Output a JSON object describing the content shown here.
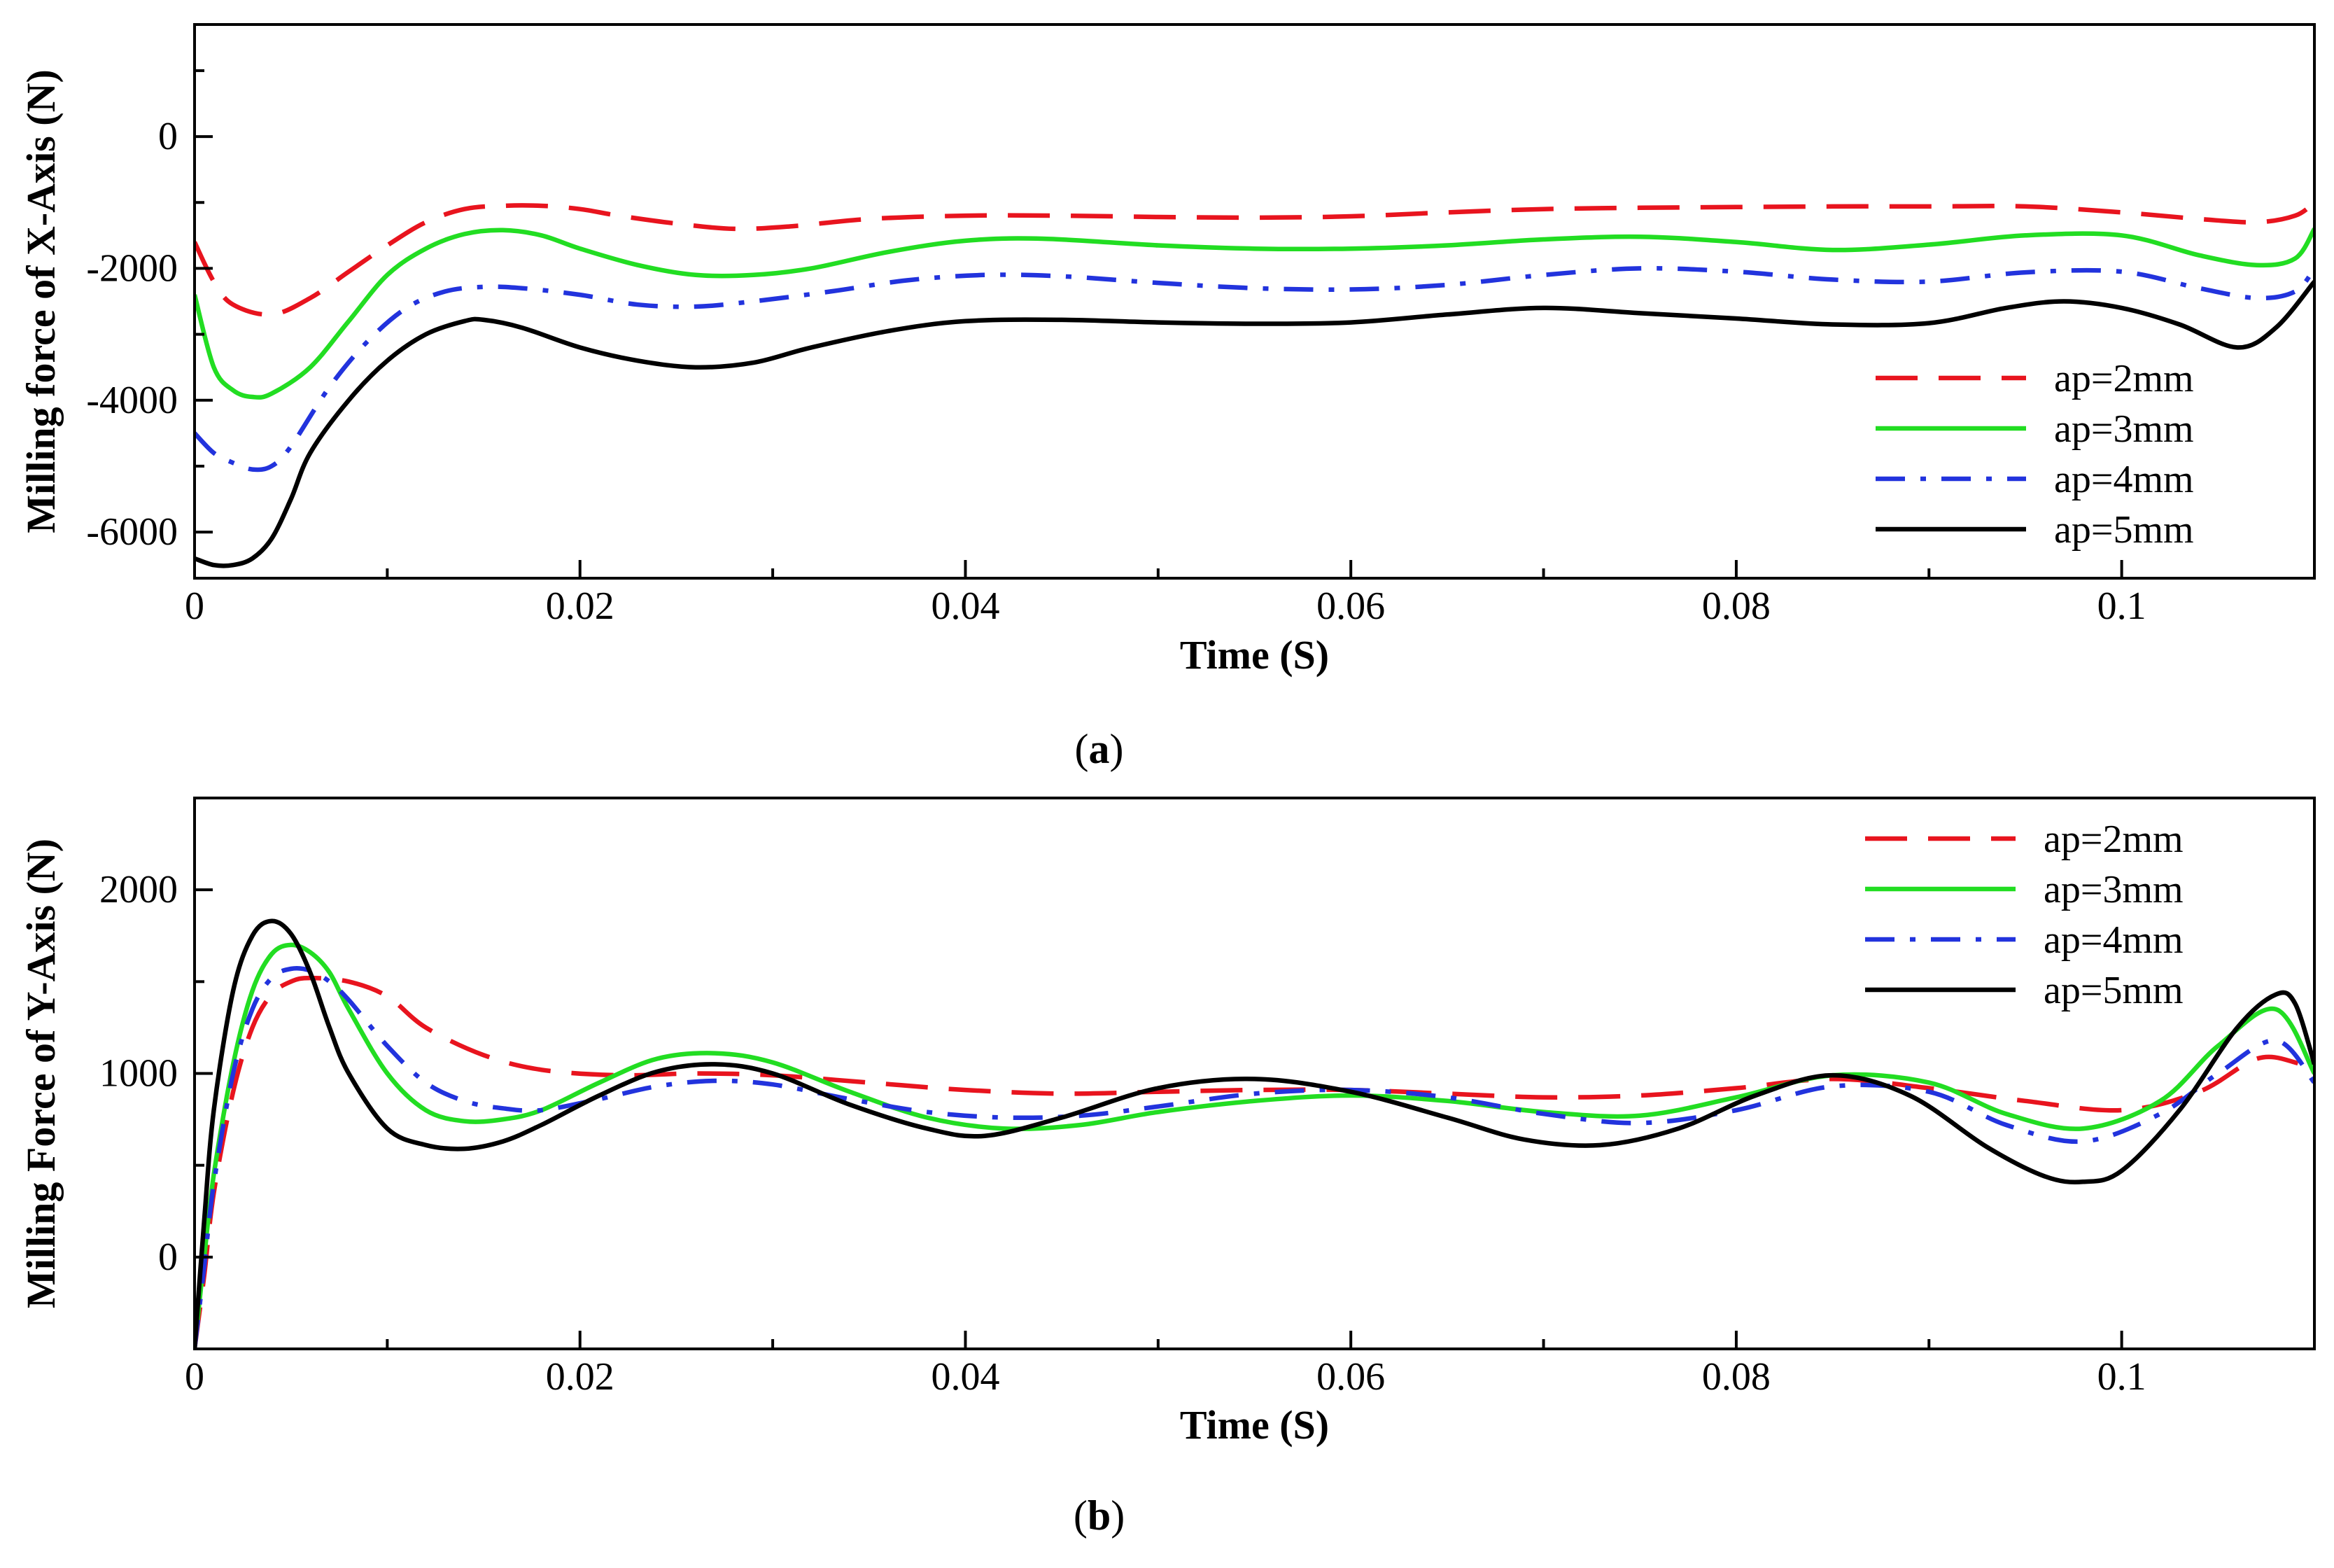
{
  "chart_data": [
    {
      "type": "line",
      "panel": "a",
      "caption_open": "(",
      "caption_letter": "a",
      "caption_close": ")",
      "xlabel": "Time (S)",
      "ylabel": "Milling force of X-Axis (N)",
      "xlim": [
        0,
        0.11
      ],
      "ylim": [
        -6700,
        1700
      ],
      "xticks": [
        0,
        0.02,
        0.04,
        0.06,
        0.08,
        0.1
      ],
      "xtick_labels": [
        "0",
        "0.02",
        "0.04",
        "0.06",
        "0.08",
        "0.1"
      ],
      "yticks": [
        -6000,
        -4000,
        -2000,
        0
      ],
      "ytick_labels": [
        "-6000",
        "-4000",
        "-2000",
        "0"
      ],
      "legend_position": "bottom-right",
      "series": [
        {
          "name": "ap=2mm",
          "color": "#e8141e",
          "dash": "dashed",
          "x": [
            0,
            0.001,
            0.002,
            0.004,
            0.006,
            0.008,
            0.01,
            0.012,
            0.014,
            0.016,
            0.018,
            0.02,
            0.022,
            0.025,
            0.028,
            0.031,
            0.035,
            0.04,
            0.045,
            0.05,
            0.055,
            0.06,
            0.065,
            0.07,
            0.075,
            0.08,
            0.085,
            0.09,
            0.095,
            0.1,
            0.104,
            0.107,
            0.109,
            0.11
          ],
          "y": [
            -1600,
            -2200,
            -2550,
            -2700,
            -2450,
            -2050,
            -1650,
            -1300,
            -1100,
            -1050,
            -1050,
            -1100,
            -1200,
            -1320,
            -1400,
            -1360,
            -1250,
            -1200,
            -1200,
            -1220,
            -1230,
            -1210,
            -1150,
            -1100,
            -1080,
            -1070,
            -1060,
            -1060,
            -1060,
            -1150,
            -1250,
            -1300,
            -1200,
            -1000
          ]
        },
        {
          "name": "ap=3mm",
          "color": "#22dd22",
          "dash": "solid",
          "x": [
            0,
            0.001,
            0.002,
            0.003,
            0.004,
            0.006,
            0.008,
            0.01,
            0.012,
            0.014,
            0.016,
            0.018,
            0.02,
            0.023,
            0.026,
            0.029,
            0.032,
            0.036,
            0.04,
            0.044,
            0.05,
            0.055,
            0.06,
            0.065,
            0.07,
            0.075,
            0.08,
            0.085,
            0.09,
            0.095,
            0.1,
            0.104,
            0.107,
            0.109,
            0.11
          ],
          "y": [
            -2400,
            -3500,
            -3850,
            -3950,
            -3900,
            -3500,
            -2800,
            -2100,
            -1700,
            -1480,
            -1420,
            -1500,
            -1700,
            -1950,
            -2100,
            -2100,
            -2000,
            -1750,
            -1580,
            -1550,
            -1650,
            -1700,
            -1700,
            -1650,
            -1560,
            -1520,
            -1600,
            -1720,
            -1640,
            -1500,
            -1500,
            -1800,
            -1950,
            -1850,
            -1400
          ]
        },
        {
          "name": "ap=4mm",
          "color": "#2233dd",
          "dash": "dashdot",
          "x": [
            0,
            0.001,
            0.002,
            0.003,
            0.004,
            0.005,
            0.007,
            0.009,
            0.011,
            0.013,
            0.015,
            0.017,
            0.02,
            0.023,
            0.026,
            0.029,
            0.033,
            0.037,
            0.041,
            0.045,
            0.05,
            0.055,
            0.06,
            0.065,
            0.07,
            0.075,
            0.08,
            0.085,
            0.09,
            0.095,
            0.1,
            0.104,
            0.107,
            0.109,
            0.11
          ],
          "y": [
            -4500,
            -4800,
            -4950,
            -5050,
            -5000,
            -4700,
            -3800,
            -3100,
            -2600,
            -2350,
            -2280,
            -2300,
            -2400,
            -2550,
            -2580,
            -2500,
            -2350,
            -2180,
            -2100,
            -2120,
            -2220,
            -2300,
            -2320,
            -2250,
            -2100,
            -2000,
            -2050,
            -2170,
            -2200,
            -2060,
            -2050,
            -2300,
            -2450,
            -2350,
            -2000
          ]
        },
        {
          "name": "ap=5mm",
          "color": "#000000",
          "dash": "solid",
          "x": [
            0,
            0.001,
            0.002,
            0.003,
            0.004,
            0.005,
            0.006,
            0.008,
            0.01,
            0.012,
            0.014,
            0.015,
            0.017,
            0.02,
            0.023,
            0.026,
            0.029,
            0.032,
            0.036,
            0.04,
            0.045,
            0.05,
            0.055,
            0.06,
            0.065,
            0.07,
            0.075,
            0.08,
            0.085,
            0.09,
            0.094,
            0.097,
            0.1,
            0.103,
            0.106,
            0.108,
            0.11
          ],
          "y": [
            -6400,
            -6500,
            -6500,
            -6400,
            -6100,
            -5500,
            -4800,
            -4000,
            -3400,
            -3000,
            -2800,
            -2780,
            -2900,
            -3200,
            -3400,
            -3500,
            -3430,
            -3200,
            -2950,
            -2800,
            -2780,
            -2820,
            -2840,
            -2820,
            -2700,
            -2600,
            -2680,
            -2760,
            -2850,
            -2830,
            -2600,
            -2500,
            -2600,
            -2850,
            -3200,
            -2900,
            -2200
          ]
        }
      ]
    },
    {
      "type": "line",
      "panel": "b",
      "caption_open": "(",
      "caption_letter": "b",
      "caption_close": ")",
      "xlabel": "Time (S)",
      "ylabel": "Milling Force of Y-Axis (N)",
      "xlim": [
        0,
        0.11
      ],
      "ylim": [
        -500,
        2500
      ],
      "xticks": [
        0,
        0.02,
        0.04,
        0.06,
        0.08,
        0.1
      ],
      "xtick_labels": [
        "0",
        "0.02",
        "0.04",
        "0.06",
        "0.08",
        "0.1"
      ],
      "yticks": [
        0,
        1000,
        2000
      ],
      "ytick_labels": [
        "0",
        "1000",
        "2000"
      ],
      "legend_position": "top-right",
      "series": [
        {
          "name": "ap=2mm",
          "color": "#e8141e",
          "dash": "dashed",
          "x": [
            0,
            0.0005,
            0.001,
            0.002,
            0.003,
            0.004,
            0.005,
            0.006,
            0.008,
            0.01,
            0.012,
            0.015,
            0.018,
            0.022,
            0.026,
            0.03,
            0.035,
            0.04,
            0.045,
            0.05,
            0.055,
            0.06,
            0.065,
            0.07,
            0.075,
            0.08,
            0.085,
            0.09,
            0.095,
            0.1,
            0.104,
            0.107,
            0.109,
            0.11
          ],
          "y": [
            -500,
            -100,
            350,
            900,
            1250,
            1430,
            1500,
            1520,
            1500,
            1420,
            1250,
            1100,
            1020,
            990,
            1000,
            990,
            950,
            910,
            890,
            900,
            910,
            910,
            890,
            870,
            880,
            920,
            970,
            920,
            850,
            800,
            900,
            1080,
            1060,
            1000
          ]
        },
        {
          "name": "ap=3mm",
          "color": "#22dd22",
          "dash": "solid",
          "x": [
            0,
            0.0005,
            0.001,
            0.002,
            0.003,
            0.004,
            0.005,
            0.006,
            0.007,
            0.008,
            0.01,
            0.012,
            0.014,
            0.016,
            0.018,
            0.021,
            0.024,
            0.027,
            0.03,
            0.034,
            0.038,
            0.042,
            0.046,
            0.05,
            0.055,
            0.06,
            0.065,
            0.07,
            0.075,
            0.08,
            0.085,
            0.09,
            0.094,
            0.098,
            0.102,
            0.105,
            0.108,
            0.11
          ],
          "y": [
            -500,
            0,
            450,
            1050,
            1450,
            1650,
            1700,
            1660,
            1550,
            1350,
            1000,
            800,
            740,
            750,
            800,
            950,
            1080,
            1110,
            1060,
            900,
            760,
            700,
            720,
            790,
            850,
            880,
            850,
            790,
            770,
            870,
            990,
            950,
            780,
            700,
            850,
            1150,
            1350,
            1000
          ]
        },
        {
          "name": "ap=4mm",
          "color": "#2233dd",
          "dash": "dashdot",
          "x": [
            0,
            0.0005,
            0.001,
            0.002,
            0.003,
            0.004,
            0.005,
            0.006,
            0.007,
            0.008,
            0.01,
            0.012,
            0.014,
            0.016,
            0.018,
            0.021,
            0.024,
            0.027,
            0.03,
            0.034,
            0.038,
            0.042,
            0.046,
            0.05,
            0.055,
            0.06,
            0.065,
            0.07,
            0.075,
            0.08,
            0.085,
            0.09,
            0.094,
            0.098,
            0.102,
            0.105,
            0.108,
            0.11
          ],
          "y": [
            -500,
            -50,
            400,
            1000,
            1350,
            1520,
            1570,
            1560,
            1500,
            1400,
            1150,
            950,
            850,
            810,
            800,
            860,
            930,
            960,
            940,
            860,
            790,
            760,
            770,
            820,
            890,
            910,
            870,
            780,
            730,
            800,
            930,
            900,
            720,
            630,
            780,
            1000,
            1180,
            950
          ]
        },
        {
          "name": "ap=5mm",
          "color": "#000000",
          "dash": "solid",
          "x": [
            0,
            0.0005,
            0.001,
            0.002,
            0.003,
            0.004,
            0.005,
            0.006,
            0.007,
            0.008,
            0.01,
            0.012,
            0.014,
            0.016,
            0.018,
            0.021,
            0.024,
            0.027,
            0.03,
            0.034,
            0.038,
            0.041,
            0.045,
            0.05,
            0.055,
            0.06,
            0.065,
            0.069,
            0.073,
            0.077,
            0.081,
            0.085,
            0.089,
            0.093,
            0.096,
            0.098,
            0.1,
            0.103,
            0.106,
            0.108,
            0.109,
            0.11
          ],
          "y": [
            -500,
            200,
            800,
            1450,
            1750,
            1830,
            1760,
            1550,
            1250,
            1000,
            700,
            610,
            590,
            630,
            720,
            880,
            1010,
            1050,
            1000,
            830,
            700,
            660,
            760,
            920,
            970,
            900,
            760,
            640,
            610,
            700,
            880,
            990,
            880,
            600,
            440,
            410,
            470,
            800,
            1250,
            1430,
            1380,
            1050
          ]
        }
      ]
    }
  ]
}
